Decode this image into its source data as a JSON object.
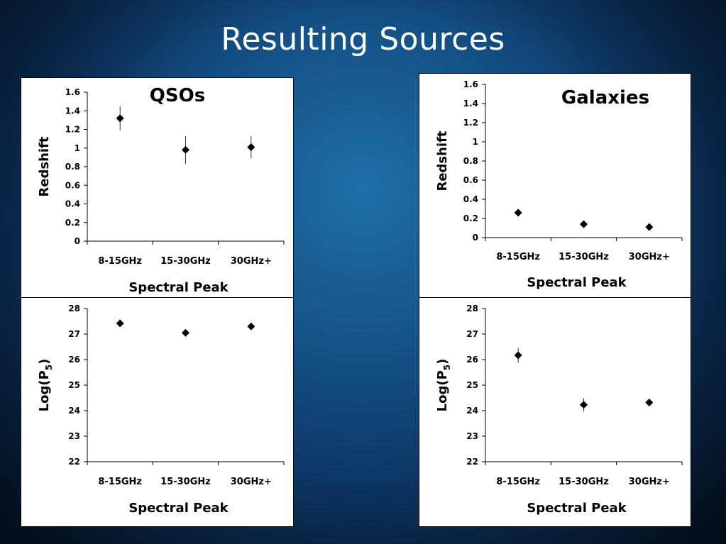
{
  "slide": {
    "title": "Resulting Sources"
  },
  "chart_data": [
    {
      "type": "scatter",
      "title": "QSOs",
      "xlabel": "Spectral Peak",
      "ylabel": "Redshift",
      "categories": [
        "8-15GHz",
        "15-30GHz",
        "30GHz+"
      ],
      "values": [
        1.32,
        0.98,
        1.01
      ],
      "error_bars": [
        [
          1.19,
          1.45
        ],
        [
          0.83,
          1.13
        ],
        [
          0.89,
          1.13
        ]
      ],
      "ylim": [
        0,
        1.6
      ],
      "yticks": [
        "0",
        "0.2",
        "0.4",
        "0.6",
        "0.8",
        "1",
        "1.2",
        "1.4",
        "1.6"
      ],
      "grid": false
    },
    {
      "type": "scatter",
      "title": "Galaxies",
      "xlabel": "Spectral Peak",
      "ylabel": "Redshift",
      "categories": [
        "8-15GHz",
        "15-30GHz",
        "30GHz+"
      ],
      "values": [
        0.26,
        0.14,
        0.11
      ],
      "error_bars": [
        [
          0.25,
          0.27
        ],
        [
          0.13,
          0.15
        ],
        [
          0.1,
          0.12
        ]
      ],
      "ylim": [
        0,
        1.6
      ],
      "yticks": [
        "0",
        "0.2",
        "0.4",
        "0.6",
        "0.8",
        "1",
        "1.2",
        "1.4",
        "1.6"
      ],
      "grid": false
    },
    {
      "type": "scatter",
      "title": "",
      "xlabel": "Spectral Peak",
      "ylabel": "Log(P",
      "ylabel_sub": "5",
      "ylabel_end": ")",
      "categories": [
        "8-15GHz",
        "15-30GHz",
        "30GHz+"
      ],
      "values": [
        27.42,
        27.05,
        27.3
      ],
      "error_bars": [
        [
          27.35,
          27.49
        ],
        [
          26.98,
          27.12
        ],
        [
          27.24,
          27.36
        ]
      ],
      "ylim": [
        22,
        28
      ],
      "yticks": [
        "22",
        "23",
        "24",
        "25",
        "26",
        "27",
        "28"
      ],
      "grid": false
    },
    {
      "type": "scatter",
      "title": "",
      "xlabel": "Spectral Peak",
      "ylabel": "Log(P",
      "ylabel_sub": "5",
      "ylabel_end": ")",
      "categories": [
        "8-15GHz",
        "15-30GHz",
        "30GHz+"
      ],
      "values": [
        26.17,
        24.23,
        24.32
      ],
      "error_bars": [
        [
          25.88,
          26.46
        ],
        [
          23.97,
          24.49
        ],
        [
          24.26,
          24.38
        ]
      ],
      "ylim": [
        22,
        28
      ],
      "yticks": [
        "22",
        "23",
        "24",
        "25",
        "26",
        "27",
        "28"
      ],
      "grid": false
    }
  ]
}
